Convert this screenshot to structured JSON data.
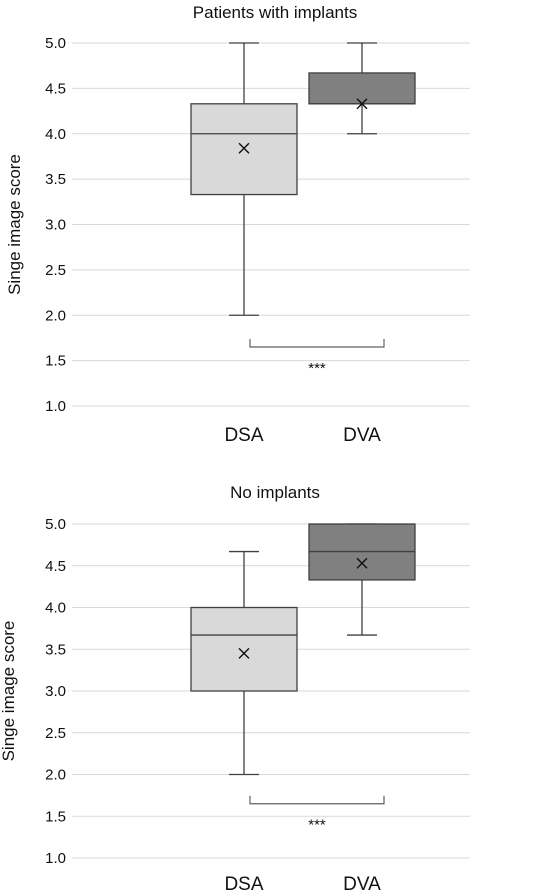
{
  "chart_data": [
    {
      "type": "box",
      "title": "Patients with implants",
      "ylabel": "Singe image score",
      "categories": [
        "DSA",
        "DVA"
      ],
      "ylim": [
        1.0,
        5.0
      ],
      "yticks": [
        "1.0",
        "1.5",
        "2.0",
        "2.5",
        "3.0",
        "3.5",
        "4.0",
        "4.5",
        "5.0"
      ],
      "grid": true,
      "boxes": [
        {
          "category": "DSA",
          "min": 2.0,
          "q1": 3.33,
          "median": 4.0,
          "q3": 4.33,
          "max": 5.0,
          "mean": 3.84,
          "color": "#d9d9d9"
        },
        {
          "category": "DVA",
          "min": 4.0,
          "q1": 4.33,
          "median": 4.33,
          "q3": 4.67,
          "max": 5.0,
          "mean": 4.33,
          "color": "#808080"
        }
      ],
      "significance": {
        "label": "***",
        "y": 1.65
      }
    },
    {
      "type": "box",
      "title": "No implants",
      "ylabel": "Singe image score",
      "categories": [
        "DSA",
        "DVA"
      ],
      "ylim": [
        1.0,
        5.0
      ],
      "yticks": [
        "1.0",
        "1.5",
        "2.0",
        "2.5",
        "3.0",
        "3.5",
        "4.0",
        "4.5",
        "5.0"
      ],
      "grid": true,
      "boxes": [
        {
          "category": "DSA",
          "min": 2.0,
          "q1": 3.0,
          "median": 3.67,
          "q3": 4.0,
          "max": 4.67,
          "mean": 3.45,
          "color": "#d9d9d9"
        },
        {
          "category": "DVA",
          "min": 3.67,
          "q1": 4.33,
          "median": 4.67,
          "q3": 5.0,
          "max": 5.0,
          "mean": 4.53,
          "color": "#808080"
        }
      ],
      "significance": {
        "label": "***",
        "y": 1.65
      }
    }
  ]
}
